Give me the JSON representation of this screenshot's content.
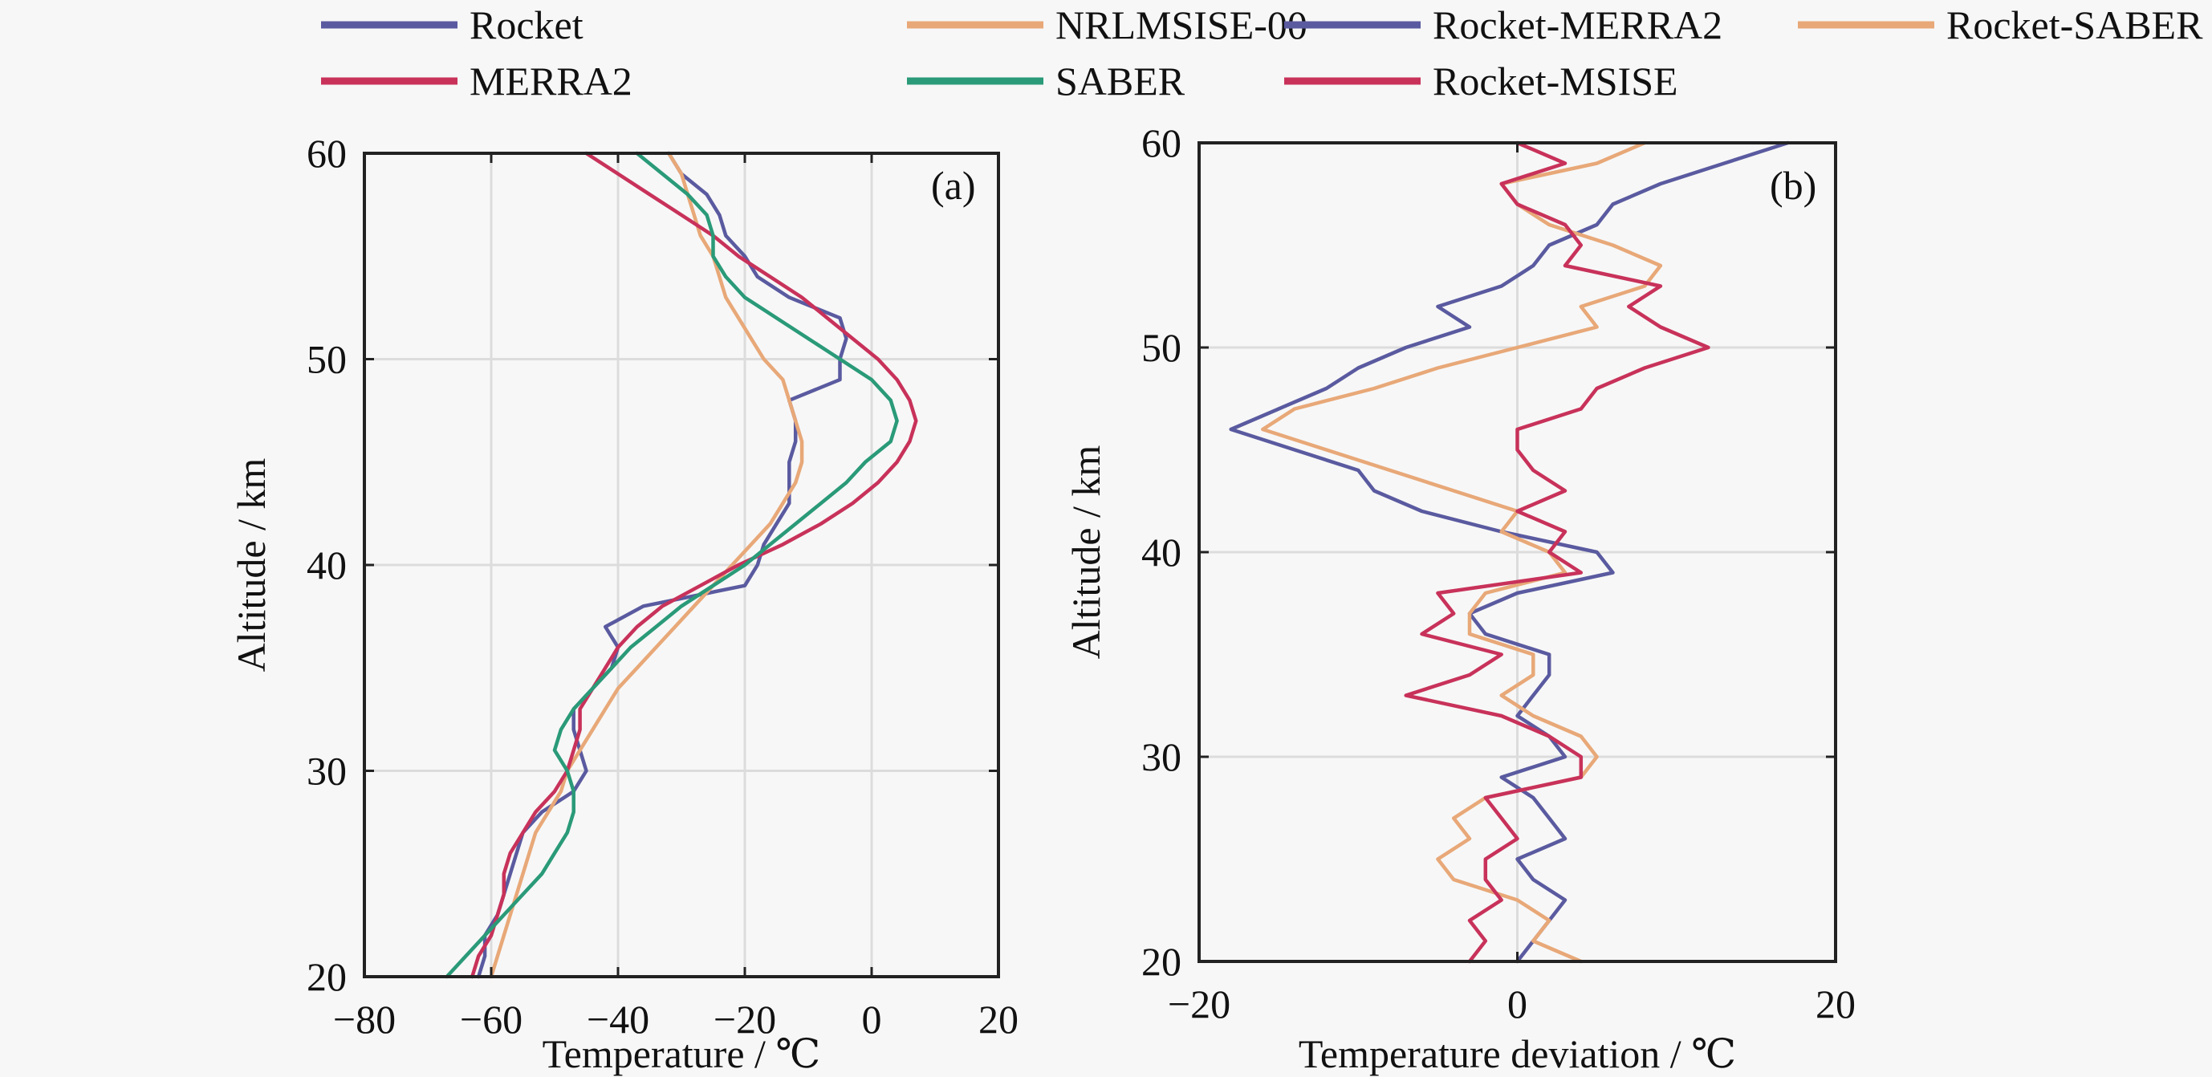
{
  "legend": {
    "items": [
      {
        "label": "Rocket",
        "color": "#5a5aa0"
      },
      {
        "label": "NRLMSISE-00",
        "color": "#e8a878"
      },
      {
        "label": "Rocket-MERRA2",
        "color": "#5a5aa0"
      },
      {
        "label": "Rocket-SABER",
        "color": "#e8a878"
      },
      {
        "label": "MERRA2",
        "color": "#c8325a"
      },
      {
        "label": "SABER",
        "color": "#2a9a78"
      },
      {
        "label": "Rocket-MSISE",
        "color": "#c8325a"
      }
    ]
  },
  "chart_data": [
    {
      "type": "line",
      "panel_label": "(a)",
      "title": "",
      "xlabel": "Temperature / ℃",
      "ylabel": "Altitude / km",
      "xlim": [
        -80,
        20
      ],
      "ylim": [
        20,
        60
      ],
      "xticks": [
        -80,
        -60,
        -40,
        -20,
        0,
        20
      ],
      "yticks": [
        20,
        30,
        40,
        50,
        60
      ],
      "xtick_labels": [
        "−80",
        "−60",
        "−40",
        "−20",
        "0",
        "20"
      ],
      "ytick_labels": [
        "20",
        "30",
        "40",
        "50",
        "60"
      ],
      "grid": true,
      "y": [
        20,
        21,
        22,
        23,
        24,
        25,
        26,
        27,
        28,
        29,
        30,
        31,
        32,
        33,
        34,
        35,
        36,
        37,
        38,
        39,
        40,
        41,
        42,
        43,
        44,
        45,
        46,
        47,
        48,
        49,
        50,
        51,
        52,
        53,
        54,
        55,
        56,
        57,
        58,
        59,
        60
      ],
      "series": [
        {
          "name": "Rocket",
          "color": "#5a5aa0",
          "x": [
            -62,
            -61,
            -61,
            -59,
            -58,
            -57,
            -56,
            -55,
            -52,
            -47,
            -45,
            -46,
            -47,
            -47,
            -44,
            -41,
            -40,
            -42,
            -36,
            -20,
            -18,
            -17,
            -15,
            -13,
            -13,
            -13,
            -12,
            -12,
            -13,
            -5,
            -5,
            -4,
            -5,
            -13,
            -18,
            -20,
            -23,
            -24,
            -26,
            -30,
            -32
          ],
          "values_note": "temperature in ℃ at each altitude in y"
        },
        {
          "name": "NRLMSISE-00",
          "color": "#e8a878",
          "x": [
            -60,
            -59,
            -58,
            -57,
            -56,
            -55,
            -54,
            -53,
            -51,
            -49,
            -48,
            -46,
            -44,
            -42,
            -40,
            -37,
            -34,
            -31,
            -28,
            -25,
            -22,
            -19,
            -16,
            -14,
            -12,
            -11,
            -11,
            -12,
            -13,
            -14,
            -17,
            -19,
            -21,
            -23,
            -24,
            -25,
            -27,
            -28,
            -29,
            -30,
            -32
          ]
        },
        {
          "name": "MERRA2",
          "color": "#c8325a",
          "x": [
            -63,
            -62,
            -60,
            -59,
            -58,
            -58,
            -57,
            -55,
            -53,
            -50,
            -48,
            -47,
            -46,
            -46,
            -44,
            -42,
            -40,
            -37,
            -33,
            -27,
            -21,
            -14,
            -8,
            -3,
            1,
            4,
            6,
            7,
            6,
            4,
            1,
            -3,
            -7,
            -11,
            -16,
            -21,
            -25,
            -30,
            -35,
            -40,
            -45
          ]
        },
        {
          "name": "SABER",
          "color": "#2a9a78",
          "x": [
            -67,
            -64,
            -61,
            -58,
            -55,
            -52,
            -50,
            -48,
            -47,
            -47,
            -48,
            -50,
            -49,
            -47,
            -44,
            -41,
            -38,
            -34,
            -30,
            -25,
            -20,
            -16,
            -12,
            -8,
            -4,
            -1,
            3,
            4,
            3,
            0,
            -5,
            -10,
            -15,
            -20,
            -23,
            -25,
            -25,
            -26,
            -29,
            -33,
            -37
          ]
        }
      ]
    },
    {
      "type": "line",
      "panel_label": "(b)",
      "title": "",
      "xlabel": "Temperature deviation / ℃",
      "ylabel": "Altitude / km",
      "xlim": [
        -20,
        20
      ],
      "ylim": [
        20,
        60
      ],
      "xticks": [
        -20,
        0,
        20
      ],
      "yticks": [
        20,
        30,
        40,
        50,
        60
      ],
      "xtick_labels": [
        "−20",
        "0",
        "20"
      ],
      "ytick_labels": [
        "20",
        "30",
        "40",
        "50",
        "60"
      ],
      "grid": true,
      "y": [
        20,
        21,
        22,
        23,
        24,
        25,
        26,
        27,
        28,
        29,
        30,
        31,
        32,
        33,
        34,
        35,
        36,
        37,
        38,
        39,
        40,
        41,
        42,
        43,
        44,
        45,
        46,
        47,
        48,
        49,
        50,
        51,
        52,
        53,
        54,
        55,
        56,
        57,
        58,
        59,
        60
      ],
      "series": [
        {
          "name": "Rocket-MERRA2",
          "color": "#5a5aa0",
          "x": [
            0,
            1,
            2,
            3,
            1,
            0,
            3,
            2,
            1,
            -1,
            3,
            2,
            0,
            1,
            2,
            2,
            -2,
            -3,
            0,
            6,
            5,
            -1,
            -6,
            -9,
            -10,
            -14,
            -18,
            -15,
            -12,
            -10,
            -7,
            -3,
            -5,
            -1,
            1,
            2,
            5,
            6,
            9,
            13,
            17
          ]
        },
        {
          "name": "Rocket-SABER",
          "color": "#e8a878",
          "x": [
            4,
            1,
            2,
            0,
            -4,
            -5,
            -3,
            -4,
            -2,
            4,
            5,
            4,
            1,
            -1,
            1,
            1,
            -3,
            -3,
            -2,
            3,
            2,
            -1,
            0,
            -4,
            -8,
            -12,
            -16,
            -14,
            -9,
            -5,
            0,
            5,
            4,
            8,
            9,
            6,
            2,
            0,
            -1,
            5,
            8
          ]
        },
        {
          "name": "Rocket-MSISE",
          "color": "#c8325a",
          "x": [
            -3,
            -2,
            -3,
            -1,
            -2,
            -2,
            0,
            -1,
            -2,
            4,
            4,
            2,
            -1,
            -7,
            -3,
            -1,
            -6,
            -4,
            -5,
            4,
            2,
            3,
            0,
            3,
            1,
            0,
            0,
            4,
            5,
            8,
            12,
            9,
            7,
            9,
            3,
            4,
            3,
            0,
            -1,
            3,
            0
          ]
        }
      ]
    }
  ]
}
